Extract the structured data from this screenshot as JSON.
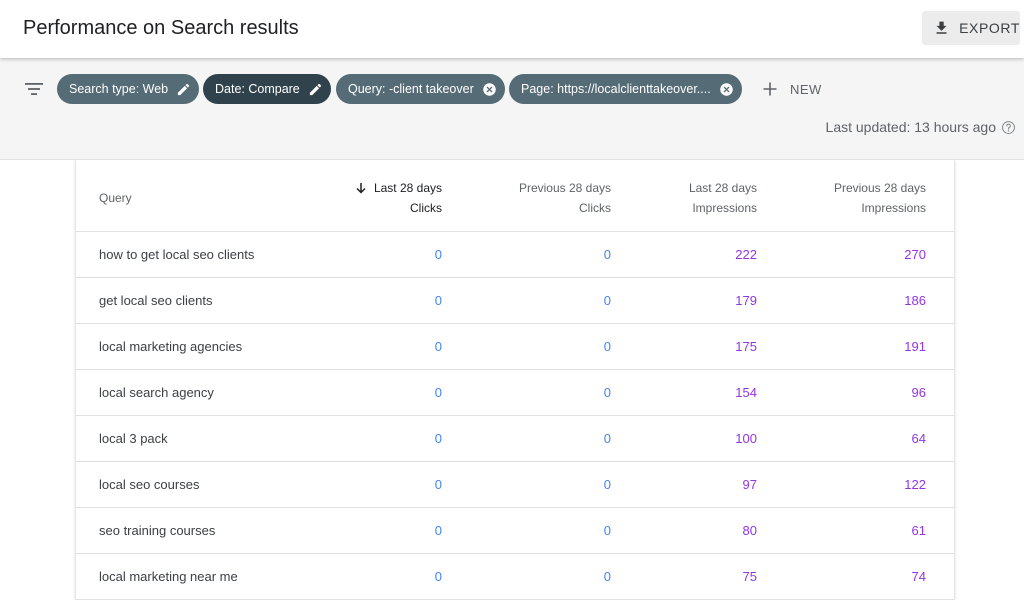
{
  "header": {
    "title": "Performance on Search results",
    "export_label": "EXPORT"
  },
  "filters": {
    "chips": [
      {
        "label": "Search type: Web",
        "icon": "pencil-icon"
      },
      {
        "label": "Date: Compare",
        "icon": "pencil-icon"
      },
      {
        "label": "Query: -client takeover",
        "icon": "close-circle-icon"
      },
      {
        "label": "Page: https://localclienttakeover....",
        "icon": "close-circle-icon"
      }
    ],
    "new_label": "NEW",
    "last_updated": "Last updated: 13 hours ago"
  },
  "colors": {
    "clicks": "#4285f4",
    "impressions": "#9334e6",
    "chip_light": "#556b76",
    "chip_dark": "#30434d"
  },
  "table": {
    "columns": [
      {
        "line1": "",
        "line2": "Query"
      },
      {
        "line1": "Last 28 days",
        "line2": "Clicks",
        "sorted": "descending"
      },
      {
        "line1": "Previous 28 days",
        "line2": "Clicks"
      },
      {
        "line1": "Last 28 days",
        "line2": "Impressions"
      },
      {
        "line1": "Previous 28 days",
        "line2": "Impressions"
      }
    ],
    "rows": [
      {
        "query": "how to get local seo clients",
        "clicks_last": "0",
        "clicks_prev": "0",
        "impr_last": "222",
        "impr_prev": "270"
      },
      {
        "query": "get local seo clients",
        "clicks_last": "0",
        "clicks_prev": "0",
        "impr_last": "179",
        "impr_prev": "186"
      },
      {
        "query": "local marketing agencies",
        "clicks_last": "0",
        "clicks_prev": "0",
        "impr_last": "175",
        "impr_prev": "191"
      },
      {
        "query": "local search agency",
        "clicks_last": "0",
        "clicks_prev": "0",
        "impr_last": "154",
        "impr_prev": "96"
      },
      {
        "query": "local 3 pack",
        "clicks_last": "0",
        "clicks_prev": "0",
        "impr_last": "100",
        "impr_prev": "64"
      },
      {
        "query": "local seo courses",
        "clicks_last": "0",
        "clicks_prev": "0",
        "impr_last": "97",
        "impr_prev": "122"
      },
      {
        "query": "seo training courses",
        "clicks_last": "0",
        "clicks_prev": "0",
        "impr_last": "80",
        "impr_prev": "61"
      },
      {
        "query": "local marketing near me",
        "clicks_last": "0",
        "clicks_prev": "0",
        "impr_last": "75",
        "impr_prev": "74"
      }
    ]
  }
}
